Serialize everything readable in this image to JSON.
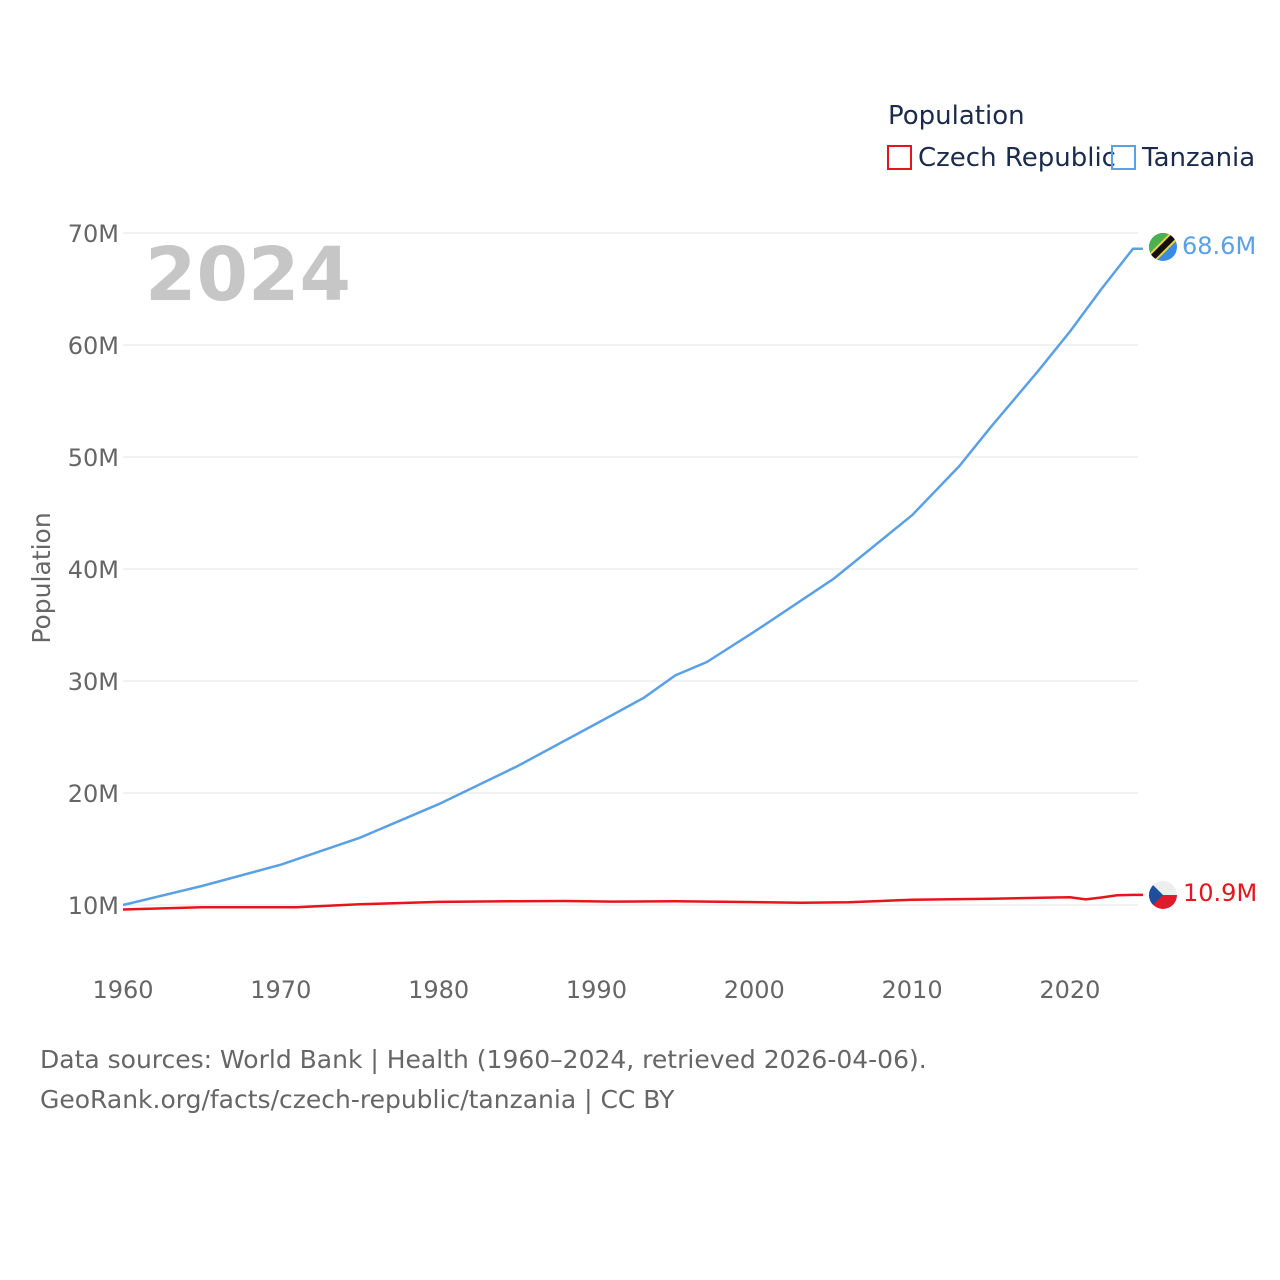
{
  "chart_data": {
    "type": "line",
    "legend_title": "Population",
    "ylabel": "Population",
    "year_label": "2024",
    "x_ticks": [
      1960,
      1970,
      1980,
      1990,
      2000,
      2010,
      2020
    ],
    "y_ticks": [
      10,
      20,
      30,
      40,
      50,
      60,
      70
    ],
    "y_tick_labels": [
      "10M",
      "20M",
      "30M",
      "40M",
      "50M",
      "60M",
      "70M"
    ],
    "xlim": [
      1960,
      2024
    ],
    "ylim_millions": [
      10,
      70
    ],
    "series": [
      {
        "name": "Czech Republic",
        "color": "#e8141b",
        "end_label": "10.9M",
        "flag": "czech-flag-icon",
        "points": [
          [
            1960,
            9.6
          ],
          [
            1965,
            9.8
          ],
          [
            1970,
            9.8
          ],
          [
            1971,
            9.8
          ],
          [
            1975,
            10.06
          ],
          [
            1980,
            10.28
          ],
          [
            1985,
            10.34
          ],
          [
            1988,
            10.36
          ],
          [
            1991,
            10.3
          ],
          [
            1995,
            10.33
          ],
          [
            2000,
            10.26
          ],
          [
            2003,
            10.2
          ],
          [
            2006,
            10.24
          ],
          [
            2010,
            10.47
          ],
          [
            2015,
            10.55
          ],
          [
            2019,
            10.67
          ],
          [
            2020,
            10.7
          ],
          [
            2021,
            10.5
          ],
          [
            2022,
            10.67
          ],
          [
            2023,
            10.87
          ],
          [
            2024,
            10.9
          ]
        ]
      },
      {
        "name": "Tanzania",
        "color": "#5aa0e6",
        "end_label": "68.6M",
        "flag": "tanzania-flag-icon",
        "points": [
          [
            1960,
            10.0
          ],
          [
            1965,
            11.7
          ],
          [
            1970,
            13.6
          ],
          [
            1975,
            16.0
          ],
          [
            1980,
            19.0
          ],
          [
            1985,
            22.4
          ],
          [
            1990,
            26.2
          ],
          [
            1993,
            28.5
          ],
          [
            1995,
            30.5
          ],
          [
            1997,
            31.7
          ],
          [
            2000,
            34.4
          ],
          [
            2005,
            39.1
          ],
          [
            2010,
            44.8
          ],
          [
            2013,
            49.2
          ],
          [
            2015,
            52.7
          ],
          [
            2018,
            57.7
          ],
          [
            2020,
            61.2
          ],
          [
            2022,
            65.0
          ],
          [
            2024,
            68.6
          ]
        ]
      }
    ]
  },
  "footer": {
    "line1": "Data sources: World Bank | Health (1960–2024, retrieved 2026-04-06).",
    "line2": "GeoRank.org/facts/czech-republic/tanzania | CC BY"
  }
}
